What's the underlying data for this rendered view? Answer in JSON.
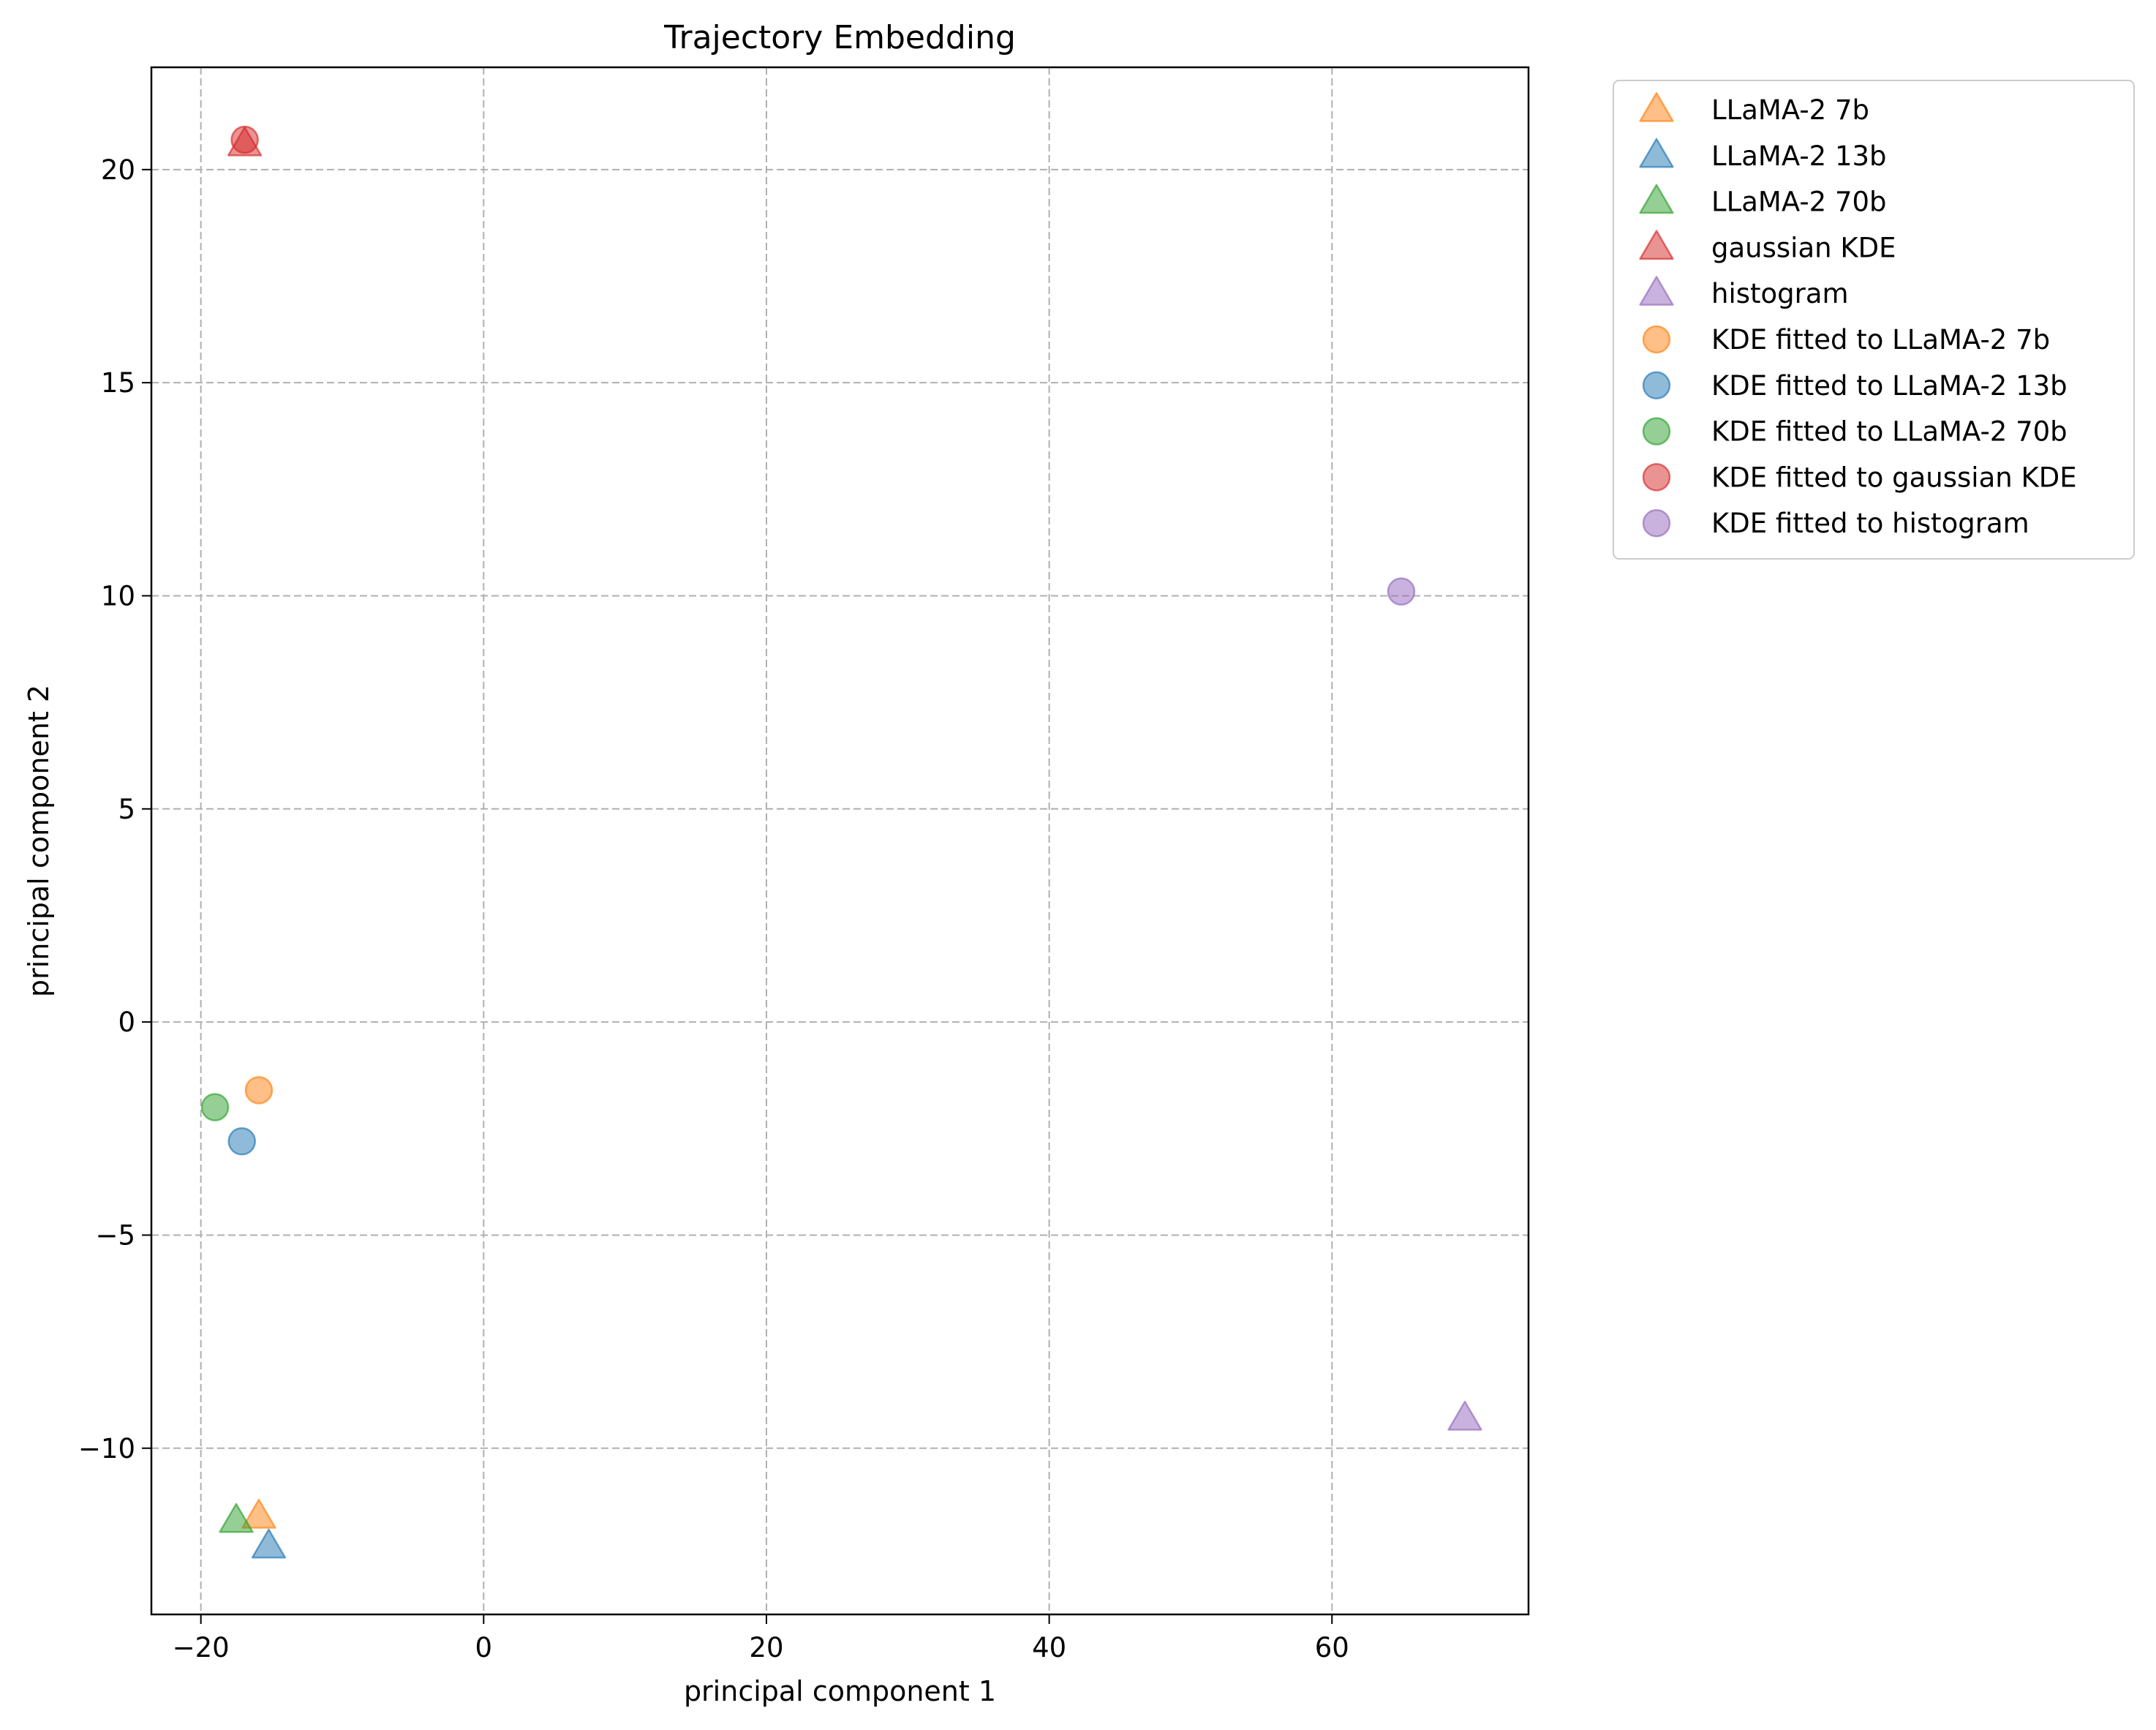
{
  "chart_data": {
    "type": "scatter",
    "title": "Trajectory Embedding",
    "xlabel": "principal component 1",
    "ylabel": "principal component 2",
    "xlim": [
      -23.5,
      73.9
    ],
    "ylim": [
      -13.9,
      22.4
    ],
    "xticks": [
      -20,
      0,
      20,
      40,
      60
    ],
    "xtick_labels": [
      "−20",
      "0",
      "20",
      "40",
      "60"
    ],
    "yticks": [
      -10,
      -5,
      0,
      5,
      10,
      15,
      20
    ],
    "ytick_labels": [
      "−10",
      "−5",
      "0",
      "5",
      "10",
      "15",
      "20"
    ],
    "grid": true,
    "legend_position": "outside-upper-right",
    "series": [
      {
        "name": "LLaMA-2 7b",
        "marker": "triangle",
        "color": "#ff7f0e",
        "x": [
          -15.9
        ],
        "y": [
          -11.6
        ]
      },
      {
        "name": "LLaMA-2 13b",
        "marker": "triangle",
        "color": "#1f77b4",
        "x": [
          -15.2
        ],
        "y": [
          -12.3
        ]
      },
      {
        "name": "LLaMA-2 70b",
        "marker": "triangle",
        "color": "#2ca02c",
        "x": [
          -17.5
        ],
        "y": [
          -11.7
        ]
      },
      {
        "name": "gaussian KDE",
        "marker": "triangle",
        "color": "#d62728",
        "x": [
          -16.9
        ],
        "y": [
          20.6
        ]
      },
      {
        "name": "histogram",
        "marker": "triangle",
        "color": "#9467bd",
        "x": [
          69.4
        ],
        "y": [
          -9.3
        ]
      },
      {
        "name": "KDE fitted to LLaMA-2 7b",
        "marker": "circle",
        "color": "#ff7f0e",
        "x": [
          -15.9
        ],
        "y": [
          -1.6
        ]
      },
      {
        "name": "KDE fitted to LLaMA-2 13b",
        "marker": "circle",
        "color": "#1f77b4",
        "x": [
          -17.1
        ],
        "y": [
          -2.8
        ]
      },
      {
        "name": "KDE fitted to LLaMA-2 70b",
        "marker": "circle",
        "color": "#2ca02c",
        "x": [
          -19.0
        ],
        "y": [
          -2.0
        ]
      },
      {
        "name": "KDE fitted to gaussian KDE",
        "marker": "circle",
        "color": "#d62728",
        "x": [
          -16.9
        ],
        "y": [
          20.7
        ]
      },
      {
        "name": "KDE fitted to histogram",
        "marker": "circle",
        "color": "#9467bd",
        "x": [
          64.9
        ],
        "y": [
          10.1
        ]
      }
    ]
  }
}
